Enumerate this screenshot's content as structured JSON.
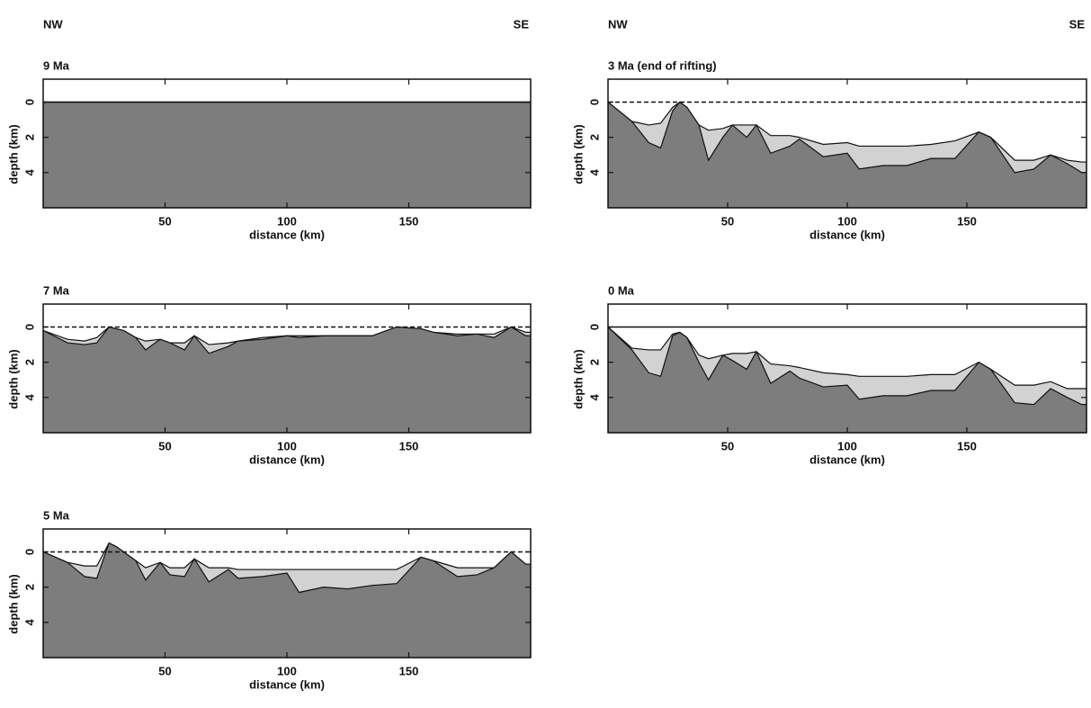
{
  "columns": [
    {
      "left": "NW",
      "right": "SE"
    },
    {
      "left": "NW",
      "right": "SE"
    }
  ],
  "chart_data": [
    {
      "type": "area",
      "title": "9 Ma",
      "x_label": "distance (km)",
      "y_label": "depth (km)",
      "xlim": [
        0,
        200
      ],
      "ylim": [
        6,
        -1.3
      ],
      "xticks": [
        50,
        100,
        150
      ],
      "yticks": [
        0,
        2,
        4
      ],
      "sea_level": {
        "value": 0,
        "style": "solid"
      },
      "x": [
        0,
        200
      ],
      "series": [
        {
          "color": "#7d7d7d",
          "values": [
            0,
            0
          ]
        }
      ]
    },
    {
      "type": "area",
      "title": "3 Ma (end of rifting)",
      "x_label": "distance (km)",
      "y_label": "depth (km)",
      "xlim": [
        0,
        200
      ],
      "ylim": [
        6,
        -1.3
      ],
      "xticks": [
        50,
        100,
        150
      ],
      "yticks": [
        0,
        2,
        4
      ],
      "sea_level": {
        "value": 0,
        "style": "dashed"
      },
      "x": [
        0,
        10,
        17,
        22,
        27,
        30,
        33,
        38,
        42,
        48,
        52,
        58,
        62,
        68,
        76,
        80,
        90,
        100,
        105,
        115,
        125,
        135,
        145,
        155,
        160,
        170,
        178,
        185,
        192,
        198
      ],
      "series": [
        {
          "color": "#d2d2d2",
          "values": [
            0,
            1.1,
            1.3,
            1.2,
            0.3,
            0,
            0.3,
            1.3,
            1.6,
            1.5,
            1.3,
            1.3,
            1.3,
            1.9,
            1.9,
            2.0,
            2.4,
            2.3,
            2.5,
            2.5,
            2.5,
            2.4,
            2.2,
            1.7,
            2.0,
            3.3,
            3.3,
            3.0,
            3.3,
            3.4
          ]
        },
        {
          "color": "#7d7d7d",
          "values": [
            0,
            1.1,
            2.3,
            2.6,
            0.5,
            0,
            0.3,
            1.3,
            3.3,
            2.0,
            1.3,
            2.0,
            1.3,
            2.9,
            2.5,
            2.1,
            3.1,
            2.9,
            3.8,
            3.6,
            3.6,
            3.2,
            3.2,
            1.7,
            2.0,
            4.0,
            3.8,
            3.0,
            3.5,
            4.0
          ]
        }
      ]
    },
    {
      "type": "area",
      "title": "7 Ma",
      "x_label": "distance (km)",
      "y_label": "depth (km)",
      "xlim": [
        0,
        200
      ],
      "ylim": [
        6,
        -1.3
      ],
      "xticks": [
        50,
        100,
        150
      ],
      "yticks": [
        0,
        2,
        4
      ],
      "sea_level": {
        "value": 0,
        "style": "dashed"
      },
      "x": [
        0,
        10,
        17,
        22,
        27,
        30,
        33,
        38,
        42,
        48,
        52,
        58,
        62,
        68,
        76,
        80,
        90,
        100,
        105,
        115,
        125,
        135,
        145,
        155,
        160,
        170,
        178,
        185,
        192,
        198
      ],
      "series": [
        {
          "color": "#d2d2d2",
          "values": [
            0.2,
            0.7,
            0.8,
            0.6,
            0,
            0.1,
            0.2,
            0.6,
            0.8,
            0.7,
            0.9,
            0.9,
            0.5,
            1.0,
            0.9,
            0.8,
            0.6,
            0.5,
            0.5,
            0.5,
            0.5,
            0.5,
            0,
            0.1,
            0.3,
            0.4,
            0.4,
            0.4,
            0,
            0.3
          ]
        },
        {
          "color": "#7d7d7d",
          "values": [
            0.2,
            0.9,
            1.0,
            0.9,
            0,
            0.1,
            0.2,
            0.6,
            1.3,
            0.7,
            0.9,
            1.3,
            0.5,
            1.5,
            1.1,
            0.8,
            0.7,
            0.5,
            0.6,
            0.5,
            0.5,
            0.5,
            0,
            0.1,
            0.3,
            0.5,
            0.4,
            0.6,
            0,
            0.5
          ]
        }
      ]
    },
    {
      "type": "area",
      "title": "0 Ma",
      "x_label": "distance (km)",
      "y_label": "depth (km)",
      "xlim": [
        0,
        200
      ],
      "ylim": [
        6,
        -1.3
      ],
      "xticks": [
        50,
        100,
        150
      ],
      "yticks": [
        0,
        2,
        4
      ],
      "sea_level": {
        "value": 0,
        "style": "solid"
      },
      "x": [
        0,
        10,
        17,
        22,
        27,
        30,
        33,
        38,
        42,
        48,
        52,
        58,
        62,
        68,
        76,
        80,
        90,
        100,
        105,
        115,
        125,
        135,
        145,
        155,
        160,
        170,
        178,
        185,
        192,
        198
      ],
      "series": [
        {
          "color": "#d2d2d2",
          "values": [
            0,
            1.2,
            1.3,
            1.3,
            0.4,
            0.3,
            0.6,
            1.6,
            1.8,
            1.6,
            1.5,
            1.5,
            1.4,
            2.1,
            2.2,
            2.3,
            2.6,
            2.7,
            2.8,
            2.8,
            2.8,
            2.7,
            2.7,
            2.0,
            2.4,
            3.3,
            3.3,
            3.1,
            3.5,
            3.5
          ]
        },
        {
          "color": "#7d7d7d",
          "values": [
            0,
            1.3,
            2.6,
            2.8,
            0.5,
            0.3,
            0.6,
            2.0,
            3.0,
            1.6,
            1.9,
            2.4,
            1.4,
            3.2,
            2.5,
            2.9,
            3.4,
            3.3,
            4.1,
            3.9,
            3.9,
            3.6,
            3.6,
            2.0,
            2.4,
            4.3,
            4.4,
            3.5,
            4.0,
            4.4
          ]
        }
      ]
    },
    {
      "type": "area",
      "title": "5 Ma",
      "x_label": "distance (km)",
      "y_label": "depth (km)",
      "xlim": [
        0,
        200
      ],
      "ylim": [
        6,
        -1.3
      ],
      "xticks": [
        50,
        100,
        150
      ],
      "yticks": [
        0,
        2,
        4
      ],
      "sea_level": {
        "value": 0,
        "style": "dashed"
      },
      "x": [
        0,
        10,
        17,
        22,
        27,
        30,
        33,
        38,
        42,
        48,
        52,
        58,
        62,
        68,
        76,
        80,
        90,
        100,
        105,
        115,
        125,
        135,
        145,
        155,
        160,
        170,
        178,
        185,
        192,
        198
      ],
      "series": [
        {
          "color": "#d2d2d2",
          "values": [
            0,
            0.6,
            0.8,
            0.8,
            -0.5,
            -0.3,
            0,
            0.5,
            0.9,
            0.6,
            0.9,
            0.9,
            0.4,
            0.9,
            0.9,
            1.0,
            1.0,
            1.0,
            1.0,
            1.0,
            1.0,
            1.0,
            1.0,
            0.3,
            0.5,
            0.9,
            0.9,
            0.9,
            0,
            0.7
          ]
        },
        {
          "color": "#7d7d7d",
          "values": [
            0,
            0.6,
            1.4,
            1.5,
            -0.5,
            -0.3,
            0,
            0.5,
            1.6,
            0.6,
            1.3,
            1.4,
            0.4,
            1.7,
            1.0,
            1.5,
            1.4,
            1.2,
            2.3,
            2.0,
            2.1,
            1.9,
            1.8,
            0.3,
            0.5,
            1.4,
            1.3,
            0.9,
            0,
            0.7
          ]
        }
      ]
    }
  ]
}
